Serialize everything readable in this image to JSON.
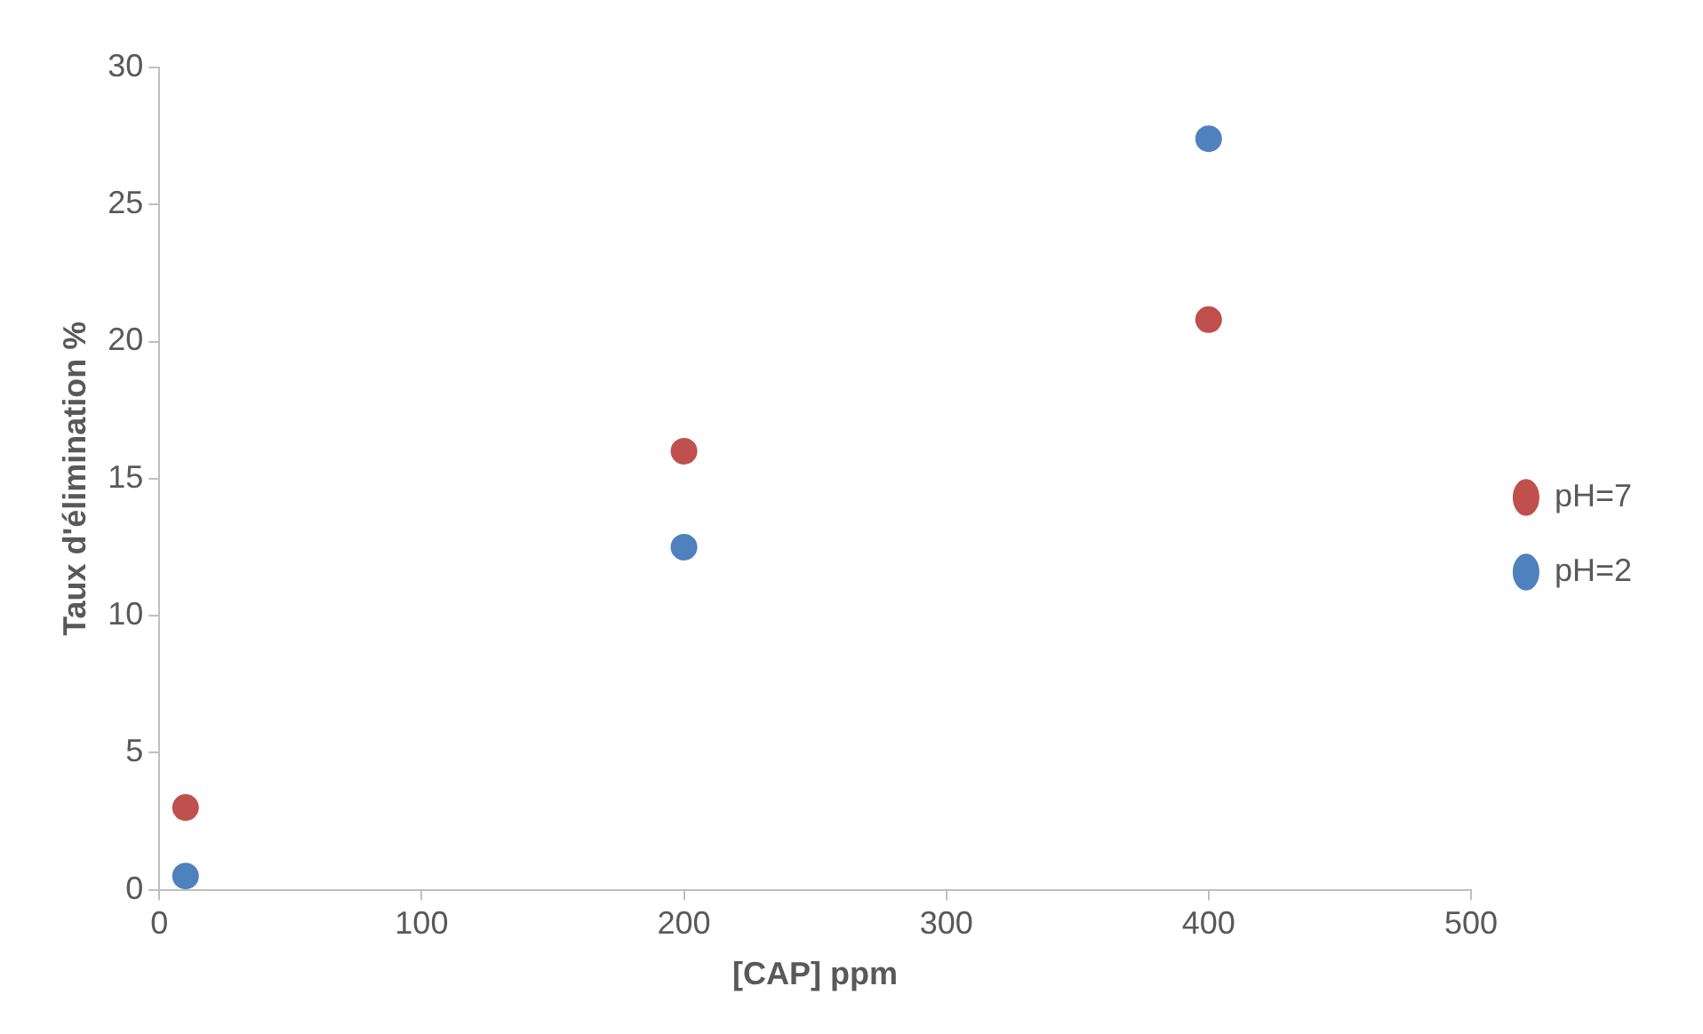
{
  "chart_data": {
    "type": "scatter",
    "xlabel": "[CAP] ppm",
    "ylabel": "Taux d'élimination %",
    "xlim": [
      0,
      500
    ],
    "xticks": [
      0,
      100,
      200,
      300,
      400,
      500
    ],
    "ylim": [
      0,
      30
    ],
    "yticks": [
      0,
      5,
      10,
      15,
      20,
      25,
      30
    ],
    "grid": false,
    "legend": "right",
    "marker": "circle",
    "series": [
      {
        "name": "pH=7",
        "color": "#c0504d",
        "x": [
          10,
          200,
          400
        ],
        "values": [
          3.0,
          16.0,
          20.8
        ]
      },
      {
        "name": "pH=2",
        "color": "#4f81bd",
        "x": [
          10,
          200,
          400
        ],
        "values": [
          0.5,
          12.5,
          27.4
        ]
      }
    ]
  }
}
